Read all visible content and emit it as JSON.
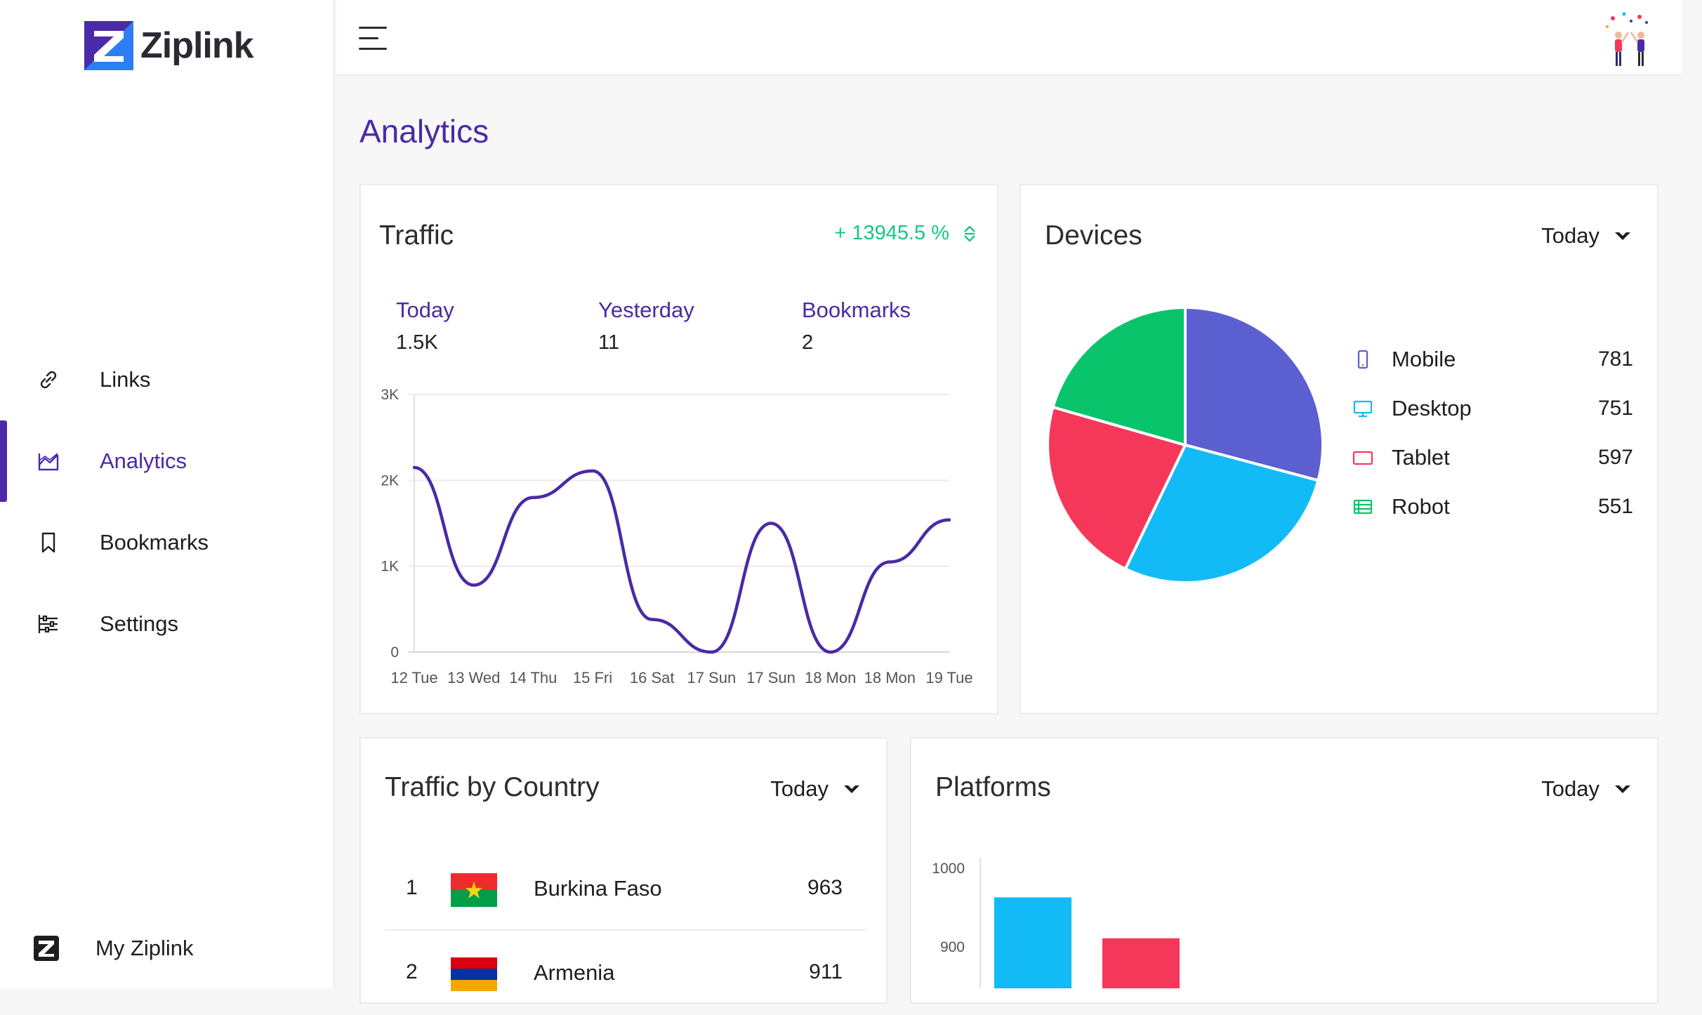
{
  "app": {
    "brand": "Ziplink"
  },
  "sidebar": {
    "items": [
      {
        "label": "Links",
        "icon": "link-icon"
      },
      {
        "label": "Analytics",
        "icon": "analytics-icon"
      },
      {
        "label": "Bookmarks",
        "icon": "bookmark-icon"
      },
      {
        "label": "Settings",
        "icon": "settings-icon"
      }
    ],
    "footer": {
      "label": "My Ziplink"
    }
  },
  "page": {
    "title": "Analytics"
  },
  "traffic": {
    "title": "Traffic",
    "growth": "+ 13945.5 %",
    "stats": [
      {
        "label": "Today",
        "value": "1.5K"
      },
      {
        "label": "Yesterday",
        "value": "11"
      },
      {
        "label": "Bookmarks",
        "value": "2"
      }
    ]
  },
  "devices": {
    "title": "Devices",
    "period": "Today",
    "items": [
      {
        "name": "Mobile",
        "value": "781",
        "color": "#5b5fcf"
      },
      {
        "name": "Desktop",
        "value": "751",
        "color": "#12bbf5"
      },
      {
        "name": "Tablet",
        "value": "597",
        "color": "#f5385a"
      },
      {
        "name": "Robot",
        "value": "551",
        "color": "#0ac46b"
      }
    ]
  },
  "country": {
    "title": "Traffic by Country",
    "period": "Today",
    "rows": [
      {
        "rank": "1",
        "name": "Burkina Faso",
        "value": "963"
      },
      {
        "rank": "2",
        "name": "Armenia",
        "value": "911"
      }
    ]
  },
  "platforms": {
    "title": "Platforms",
    "period": "Today"
  },
  "chart_data": [
    {
      "type": "line",
      "categories": [
        "12 Tue",
        "13 Wed",
        "14 Thu",
        "15 Fri",
        "16 Sat",
        "17 Sun",
        "17 Sun",
        "18 Mon",
        "18 Mon",
        "19 Tue"
      ],
      "series": [
        {
          "values": [
            2150,
            780,
            1800,
            2110,
            380,
            0,
            1500,
            0,
            1050,
            1540
          ],
          "color": "#4a2aa6"
        }
      ],
      "yticks": [
        "0",
        "1K",
        "2K",
        "3K"
      ],
      "ylim": [
        0,
        3000
      ],
      "grid": true
    },
    {
      "type": "pie",
      "labels": [
        "Mobile",
        "Desktop",
        "Tablet",
        "Robot"
      ],
      "values": [
        781,
        751,
        597,
        551
      ],
      "colors": [
        "#5b5fcf",
        "#12bbf5",
        "#f5385a",
        "#0ac46b"
      ]
    },
    {
      "type": "bar",
      "yticks": [
        "1000",
        "900"
      ],
      "ylim_visible": [
        800,
        1000
      ],
      "values": [
        963,
        911
      ],
      "colors": [
        "#12bbf5",
        "#f5385a"
      ]
    }
  ]
}
